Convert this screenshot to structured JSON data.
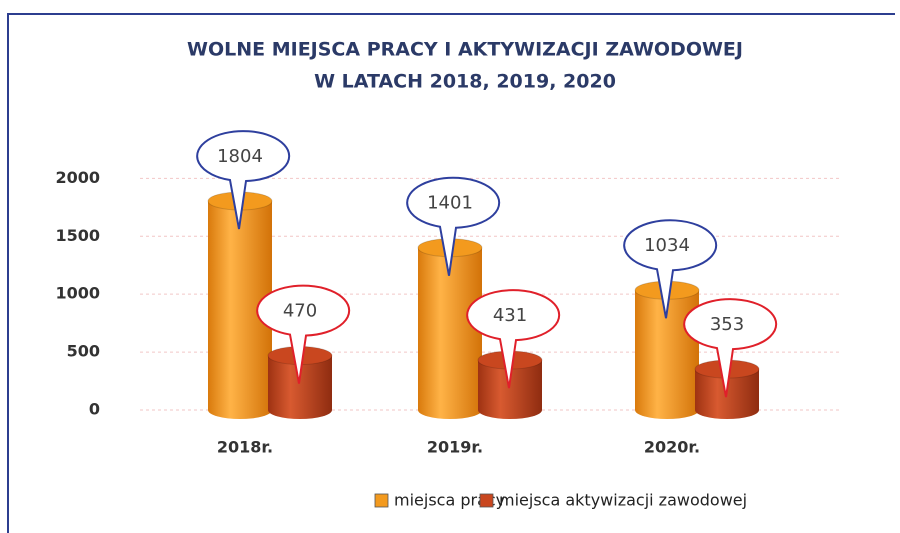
{
  "chart_data": {
    "type": "cylinder-bar",
    "title": [
      "WOLNE MIEJSCA PRACY I AKTYWIZACJI ZAWODOWEJ",
      "W LATACH 2018, 2019, 2020"
    ],
    "categories": [
      "2018r.",
      "2019r.",
      "2020r."
    ],
    "series": [
      {
        "name": "miejsca pracy",
        "color": "#f39a1e",
        "label_color": "#2e3f9e",
        "values": [
          1804,
          1401,
          1034
        ]
      },
      {
        "name": "miejsca aktywizacji zawodowej",
        "color": "#c9471f",
        "label_color": "#e0202a",
        "values": [
          470,
          431,
          353
        ]
      }
    ],
    "ylim": [
      0,
      2400
    ],
    "yticks": [
      0,
      500,
      1000,
      1500,
      2000
    ],
    "grid": true
  }
}
